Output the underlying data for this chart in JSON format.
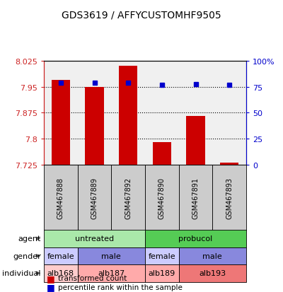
{
  "title": "GDS3619 / AFFYCUSTOMHF9505",
  "samples": [
    "GSM467888",
    "GSM467889",
    "GSM467892",
    "GSM467890",
    "GSM467891",
    "GSM467893"
  ],
  "red_values": [
    7.97,
    7.95,
    8.01,
    7.79,
    7.865,
    7.73
  ],
  "blue_values": [
    7.962,
    7.962,
    7.962,
    7.956,
    7.958,
    7.956
  ],
  "y_min": 7.725,
  "y_max": 8.025,
  "y_ticks_left": [
    7.725,
    7.8,
    7.875,
    7.95,
    8.025
  ],
  "y_ticks_right": [
    0,
    25,
    50,
    75,
    100
  ],
  "bar_color": "#cc0000",
  "dot_color": "#0000cc",
  "agent_items": [
    [
      "untreated",
      0,
      2,
      "#aae8aa"
    ],
    [
      "probucol",
      3,
      5,
      "#55cc55"
    ]
  ],
  "gender_items": [
    [
      "female",
      0,
      0,
      "#ccccff"
    ],
    [
      "male",
      1,
      2,
      "#8888dd"
    ],
    [
      "female",
      3,
      3,
      "#ccccff"
    ],
    [
      "male",
      4,
      5,
      "#8888dd"
    ]
  ],
  "indiv_items": [
    [
      "alb168",
      0,
      0,
      "#ffcccc"
    ],
    [
      "alb187",
      1,
      2,
      "#ffaaaa"
    ],
    [
      "alb189",
      3,
      3,
      "#ffaaaa"
    ],
    [
      "alb193",
      4,
      5,
      "#ee7777"
    ]
  ],
  "gsm_bg": "#cccccc",
  "plot_bg": "#f0f0f0"
}
